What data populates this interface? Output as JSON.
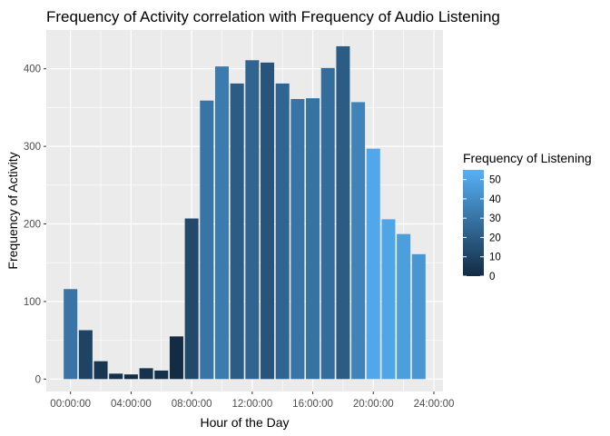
{
  "chart_data": {
    "type": "bar",
    "title": "Frequency of Activity correlation with Frequency of Audio Listening",
    "xlabel": "Hour of the Day",
    "ylabel": "Frequency of Activity",
    "x_unit": "hour of day",
    "x_tick_labels": [
      "00:00:00",
      "04:00:00",
      "08:00:00",
      "12:00:00",
      "16:00:00",
      "20:00:00",
      "24:00:00"
    ],
    "x_ticks": [
      0,
      4,
      8,
      12,
      16,
      20,
      24
    ],
    "xlim": [
      -1.6,
      24.6
    ],
    "y_ticks": [
      0,
      100,
      200,
      300,
      400
    ],
    "ylim": [
      -16,
      450
    ],
    "x": [
      0,
      1,
      2,
      3,
      4,
      5,
      6,
      7,
      8,
      9,
      10,
      11,
      12,
      13,
      14,
      15,
      16,
      17,
      18,
      19,
      20,
      21,
      22,
      23
    ],
    "values": [
      116,
      63,
      23,
      7,
      6,
      14,
      11,
      55,
      207,
      359,
      403,
      381,
      411,
      408,
      381,
      361,
      362,
      401,
      429,
      357,
      297,
      206,
      187,
      161
    ],
    "fill_values": [
      30,
      10,
      5,
      2,
      1,
      3,
      2,
      0,
      12,
      30,
      33,
      20,
      24,
      17,
      24,
      30,
      29,
      27,
      20,
      36,
      51,
      50,
      47,
      44
    ],
    "legend": {
      "title": "Frequency of Listening",
      "ticks": [
        0,
        10,
        20,
        30,
        40,
        50
      ],
      "range": [
        0,
        55
      ],
      "placement": "right",
      "low_color": "#132b43",
      "high_color": "#56b1f7"
    },
    "grid": true,
    "panel_background": "#ebebeb",
    "gridline_color": "#ffffff"
  }
}
